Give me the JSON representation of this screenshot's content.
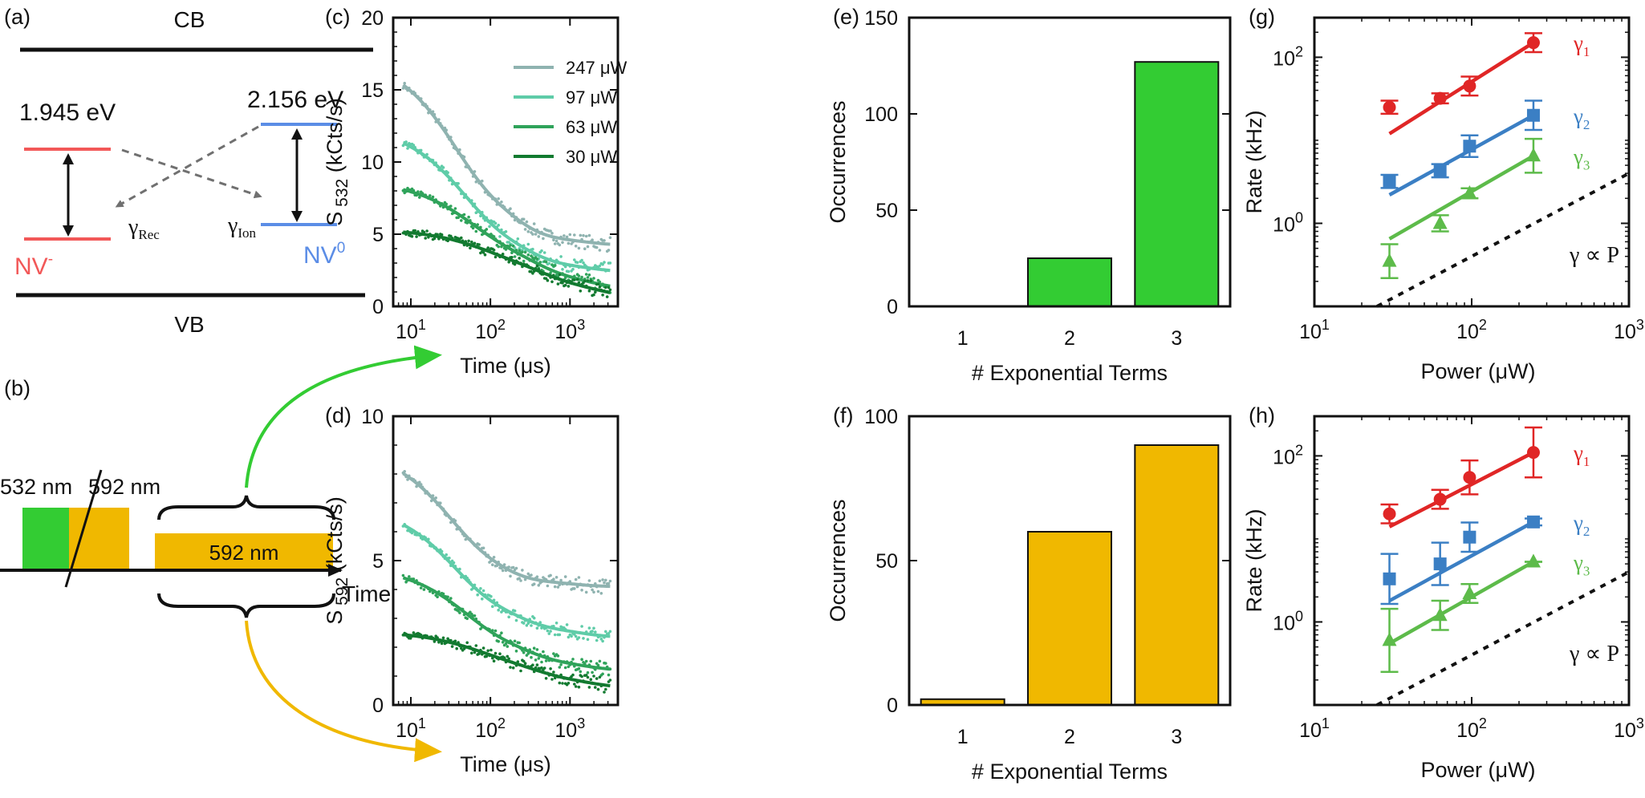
{
  "panel_labels": {
    "a": "(a)",
    "b": "(b)",
    "c": "(c)",
    "d": "(d)",
    "e": "(e)",
    "f": "(f)",
    "g": "(g)",
    "h": "(h)"
  },
  "colors": {
    "nvminus": "#f25858",
    "nv0": "#5b8de6",
    "green_laser": "#33cc33",
    "yellow_laser": "#f0b800",
    "s247": "#8fb3b0",
    "s97": "#5fcca8",
    "s63": "#2fa35a",
    "s30": "#127a30",
    "g1": "#e02626",
    "g2": "#3b7fc4",
    "g3": "#5dbb4a",
    "bar_green": "#33cc33",
    "bar_yellow": "#f0b800"
  },
  "panel_a": {
    "cb": "CB",
    "vb": "VB",
    "e_left": "1.945 eV",
    "e_right": "2.156 eV",
    "nv_minus": "NV",
    "nv_minus_sup": "-",
    "nv_zero": "NV",
    "nv_zero_sup": "0",
    "gamma": "γ",
    "rec_sub": "Rec",
    "ion_sub": "Ion"
  },
  "panel_b": {
    "laser1": "532 nm",
    "laser2": "592 nm",
    "pulse": "592 nm",
    "axis": "Time"
  },
  "chart_data": [
    {
      "id": "c",
      "type": "line",
      "xscale": "log",
      "xlim": [
        6,
        4000
      ],
      "ylim": [
        0,
        20
      ],
      "ylabel_main": "S",
      "ylabel_sub": "532",
      "ylabel_unit": "(kCts/s)",
      "xlabel": "Time (μs)",
      "yticks": [
        "0",
        "5",
        "10",
        "15",
        "20"
      ],
      "xtick_base": "10",
      "xtick_exps": [
        "1",
        "2",
        "3"
      ],
      "series": [
        {
          "name": "247  μW",
          "a": [
            7.5,
            4.8,
            0.8
          ],
          "tau": [
            30,
            150,
            1200
          ],
          "c": 4.25
        },
        {
          "name": "97  μW",
          "a": [
            5.8,
            3.4,
            0.9
          ],
          "tau": [
            40,
            200,
            1400
          ],
          "c": 2.4
        },
        {
          "name": "63  μW",
          "a": [
            3.2,
            2.8,
            1.5
          ],
          "tau": [
            45,
            250,
            1600
          ],
          "c": 1.2
        },
        {
          "name": "30  μW",
          "a": [
            1.2,
            2.0,
            1.5
          ],
          "tau": [
            60,
            320,
            2000
          ],
          "c": 0.65
        }
      ]
    },
    {
      "id": "d",
      "type": "line",
      "xscale": "log",
      "xlim": [
        6,
        4000
      ],
      "ylim": [
        0,
        10
      ],
      "ylabel_main": "S",
      "ylabel_sub": "592",
      "ylabel_unit": "(kCts/s)",
      "xlabel": "Time (μs)",
      "yticks": [
        "0",
        "5",
        "10"
      ],
      "xtick_base": "10",
      "xtick_exps": [
        "1",
        "2",
        "3"
      ],
      "series": [
        {
          "name": "247  μW",
          "a": [
            2.7,
            1.8,
            0.3
          ],
          "tau": [
            25,
            100,
            900
          ],
          "c": 4.1
        },
        {
          "name": "97  μW",
          "a": [
            2.7,
            1.4,
            0.5
          ],
          "tau": [
            30,
            150,
            1100
          ],
          "c": 2.35
        },
        {
          "name": "63  μW",
          "a": [
            1.9,
            1.2,
            0.5
          ],
          "tau": [
            40,
            200,
            1300
          ],
          "c": 1.2
        },
        {
          "name": "30  μW",
          "a": [
            0.6,
            0.8,
            0.55
          ],
          "tau": [
            50,
            250,
            1500
          ],
          "c": 0.6
        }
      ]
    },
    {
      "id": "e",
      "type": "bar",
      "categories": [
        "1",
        "2",
        "3"
      ],
      "values": [
        0,
        25,
        127
      ],
      "ylim": [
        0,
        150
      ],
      "yticks": [
        "0",
        "50",
        "100",
        "150"
      ],
      "ylabel": "Occurrences",
      "xlabel": "# Exponential Terms"
    },
    {
      "id": "f",
      "type": "bar",
      "categories": [
        "1",
        "2",
        "3"
      ],
      "values": [
        2,
        60,
        90
      ],
      "ylim": [
        0,
        100
      ],
      "yticks": [
        "0",
        "50",
        "100"
      ],
      "ylabel": "Occurrences",
      "xlabel": "# Exponential Terms"
    },
    {
      "id": "g",
      "type": "scatter",
      "xscale": "log",
      "yscale": "log",
      "xlim": [
        10,
        1000
      ],
      "ylim": [
        0.1,
        300
      ],
      "ylabel": "Rate (kHz)",
      "xlabel": "Power (μW)",
      "tick_base": "10",
      "xtick_exps": [
        "1",
        "2",
        "3"
      ],
      "ytick_exps": [
        "0",
        "2"
      ],
      "annotation": "γ ∝ P",
      "series": [
        {
          "name": "γ",
          "sub": "1",
          "x": [
            30,
            63,
            97,
            247
          ],
          "y": [
            25,
            32,
            45,
            150
          ],
          "err": [
            1.2,
            1.15,
            1.3,
            1.3
          ],
          "fit": [
            [
              30,
              12
            ],
            [
              247,
              150
            ]
          ],
          "marker": "circle"
        },
        {
          "name": "γ",
          "sub": "2",
          "x": [
            30,
            63,
            97,
            247
          ],
          "y": [
            3.2,
            4.3,
            8.5,
            20
          ],
          "err": [
            1.2,
            1.2,
            1.35,
            1.5
          ],
          "fit": [
            [
              30,
              2.2
            ],
            [
              247,
              20
            ]
          ],
          "marker": "square"
        },
        {
          "name": "γ",
          "sub": "3",
          "x": [
            30,
            63,
            97,
            247
          ],
          "y": [
            0.35,
            1.0,
            2.3,
            6.5
          ],
          "err": [
            1.6,
            1.25,
            1.15,
            1.6
          ],
          "fit": [
            [
              30,
              0.65
            ],
            [
              247,
              6.5
            ]
          ],
          "marker": "triangle"
        }
      ],
      "ref_line": [
        [
          20,
          0.08
        ],
        [
          1000,
          4
        ]
      ]
    },
    {
      "id": "h",
      "type": "scatter",
      "xscale": "log",
      "yscale": "log",
      "xlim": [
        10,
        1000
      ],
      "ylim": [
        0.1,
        300
      ],
      "ylabel": "Rate (kHz)",
      "xlabel": "Power (μW)",
      "tick_base": "10",
      "xtick_exps": [
        "1",
        "2",
        "3"
      ],
      "ytick_exps": [
        "0",
        "2"
      ],
      "annotation": "γ ∝ P",
      "series": [
        {
          "name": "γ",
          "sub": "1",
          "x": [
            30,
            63,
            97,
            247
          ],
          "y": [
            20,
            30,
            55,
            110
          ],
          "err": [
            1.3,
            1.3,
            1.6,
            2.0
          ],
          "fit": [
            [
              30,
              14
            ],
            [
              247,
              110
            ]
          ],
          "marker": "circle"
        },
        {
          "name": "γ",
          "sub": "2",
          "x": [
            30,
            63,
            97,
            247
          ],
          "y": [
            3.3,
            5.0,
            10.5,
            16
          ],
          "err": [
            2.0,
            1.8,
            1.5,
            1.1
          ],
          "fit": [
            [
              30,
              1.8
            ],
            [
              247,
              16
            ]
          ],
          "marker": "square"
        },
        {
          "name": "γ",
          "sub": "3",
          "x": [
            30,
            63,
            97,
            247
          ],
          "y": [
            0.6,
            1.2,
            2.2,
            5.3
          ],
          "err": [
            2.4,
            1.5,
            1.3,
            1.0
          ],
          "fit": [
            [
              30,
              0.55
            ],
            [
              247,
              5.3
            ]
          ],
          "marker": "triangle"
        }
      ],
      "ref_line": [
        [
          20,
          0.08
        ],
        [
          1000,
          4
        ]
      ]
    }
  ]
}
